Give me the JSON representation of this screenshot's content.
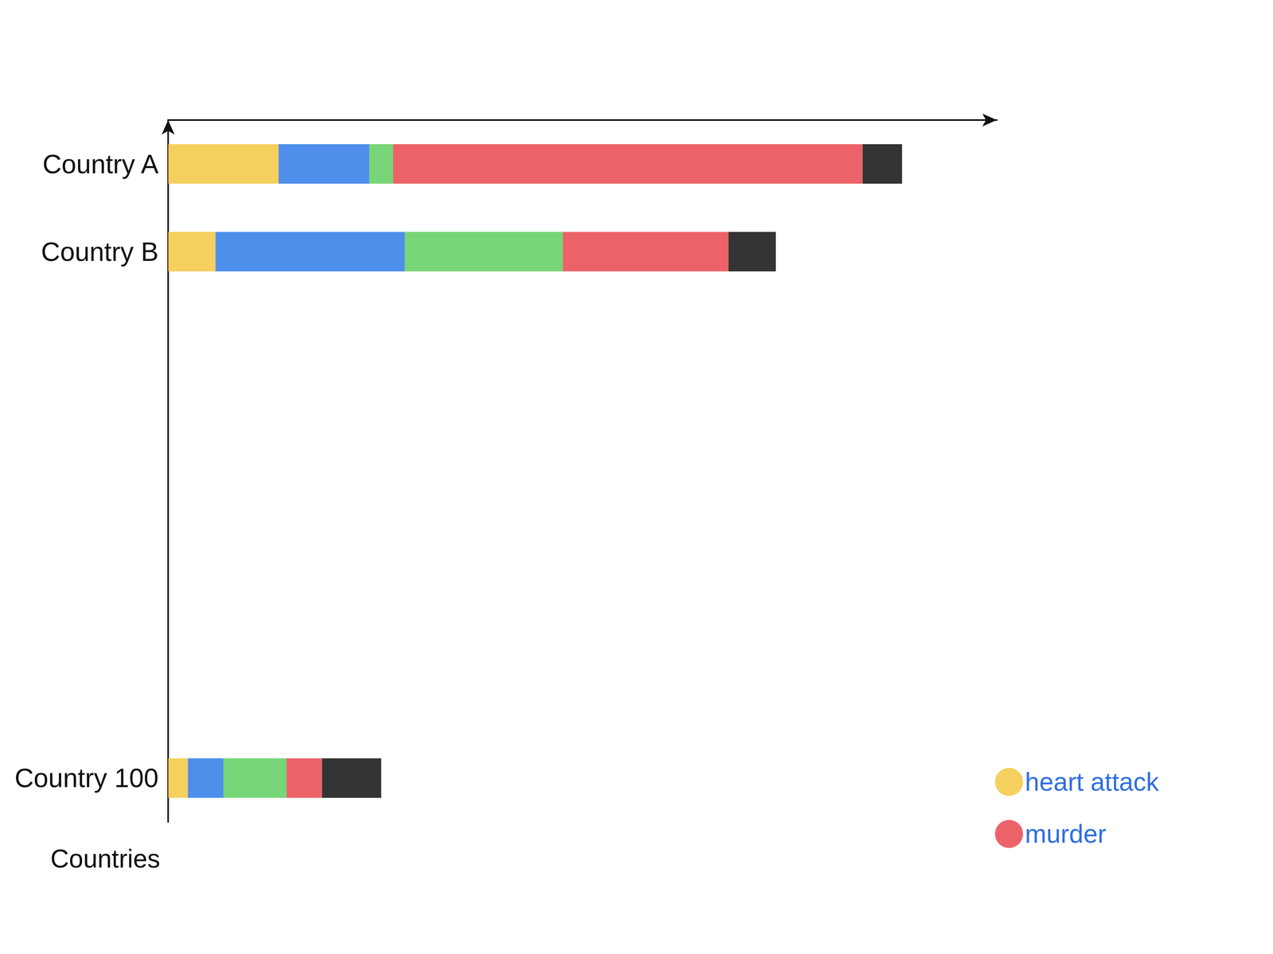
{
  "chart_data": {
    "type": "bar",
    "orientation": "horizontal",
    "stacked": true,
    "categories": [
      "Country A",
      "Country B",
      null,
      null,
      null,
      null,
      null,
      "Country 100"
    ],
    "ylabel": "Countries",
    "xlim": [
      0,
      1050
    ],
    "xticks": [],
    "tick_labels": "y",
    "grid": false,
    "legend": "lower right",
    "series": [
      {
        "name": "heart attack",
        "color": "#f5c842",
        "values": [
          140,
          60,
          null,
          null,
          null,
          null,
          null,
          25
        ]
      },
      {
        "color": "#2f7be8",
        "values": [
          115,
          240,
          null,
          null,
          null,
          null,
          null,
          45
        ]
      },
      {
        "color": "#5fcf5f",
        "values": [
          30,
          200,
          null,
          null,
          null,
          null,
          null,
          80
        ]
      },
      {
        "name": "murder",
        "color": "#e8484f",
        "values": [
          595,
          210,
          null,
          null,
          null,
          null,
          null,
          45
        ]
      },
      {
        "color": "#111111",
        "values": [
          50,
          60,
          null,
          null,
          null,
          null,
          null,
          75
        ]
      }
    ]
  }
}
